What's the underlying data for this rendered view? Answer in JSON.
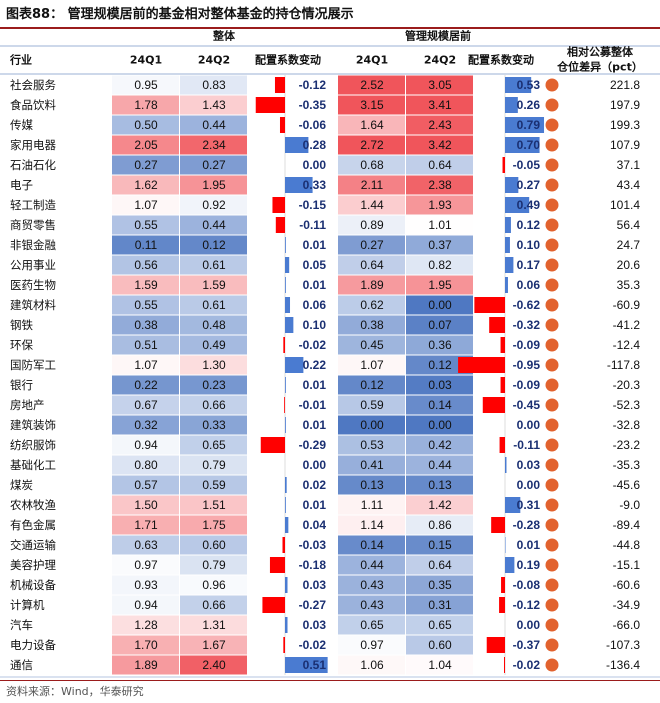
{
  "title": "图表88：  管理规模居前的基金相对整体基金的持仓情况展示",
  "source": "资料来源：Wind，华泰研究",
  "colors": {
    "red": "#f0555b",
    "blue": "#4f78c2",
    "bar_red": "#ff0000",
    "bar_blue": "#4a7bd1",
    "dot": "#e2622e",
    "change_text": "#1a2f72"
  },
  "chart_data": {
    "type": "table",
    "group_headers": {
      "overall": "整体",
      "top": "管理规模居前"
    },
    "columns": [
      "行业",
      "24Q1",
      "24Q2",
      "配置系数变动",
      "24Q1",
      "24Q2",
      "配置系数变动",
      "相对公募整体仓位差异（pct）"
    ],
    "rows": [
      {
        "industry": "社会服务",
        "all_q1": 0.95,
        "all_q2": 0.83,
        "all_chg": -0.12,
        "top_q1": 2.52,
        "top_q2": 3.05,
        "top_chg": 0.53,
        "diff": 221.8
      },
      {
        "industry": "食品饮料",
        "all_q1": 1.78,
        "all_q2": 1.43,
        "all_chg": -0.35,
        "top_q1": 3.15,
        "top_q2": 3.41,
        "top_chg": 0.26,
        "diff": 197.9
      },
      {
        "industry": "传媒",
        "all_q1": 0.5,
        "all_q2": 0.44,
        "all_chg": -0.06,
        "top_q1": 1.64,
        "top_q2": 2.43,
        "top_chg": 0.79,
        "diff": 199.3
      },
      {
        "industry": "家用电器",
        "all_q1": 2.05,
        "all_q2": 2.34,
        "all_chg": 0.28,
        "top_q1": 2.72,
        "top_q2": 3.42,
        "top_chg": 0.7,
        "diff": 107.9
      },
      {
        "industry": "石油石化",
        "all_q1": 0.27,
        "all_q2": 0.27,
        "all_chg": 0.0,
        "top_q1": 0.68,
        "top_q2": 0.64,
        "top_chg": -0.05,
        "diff": 37.1
      },
      {
        "industry": "电子",
        "all_q1": 1.62,
        "all_q2": 1.95,
        "all_chg": 0.33,
        "top_q1": 2.11,
        "top_q2": 2.38,
        "top_chg": 0.27,
        "diff": 43.4
      },
      {
        "industry": "轻工制造",
        "all_q1": 1.07,
        "all_q2": 0.92,
        "all_chg": -0.15,
        "top_q1": 1.44,
        "top_q2": 1.93,
        "top_chg": 0.49,
        "diff": 101.4
      },
      {
        "industry": "商贸零售",
        "all_q1": 0.55,
        "all_q2": 0.44,
        "all_chg": -0.11,
        "top_q1": 0.89,
        "top_q2": 1.01,
        "top_chg": 0.12,
        "diff": 56.4
      },
      {
        "industry": "非银金融",
        "all_q1": 0.11,
        "all_q2": 0.12,
        "all_chg": 0.01,
        "top_q1": 0.27,
        "top_q2": 0.37,
        "top_chg": 0.1,
        "diff": 24.7
      },
      {
        "industry": "公用事业",
        "all_q1": 0.56,
        "all_q2": 0.61,
        "all_chg": 0.05,
        "top_q1": 0.64,
        "top_q2": 0.82,
        "top_chg": 0.17,
        "diff": 20.6
      },
      {
        "industry": "医药生物",
        "all_q1": 1.59,
        "all_q2": 1.59,
        "all_chg": 0.01,
        "top_q1": 1.89,
        "top_q2": 1.95,
        "top_chg": 0.06,
        "diff": 35.3
      },
      {
        "industry": "建筑材料",
        "all_q1": 0.55,
        "all_q2": 0.61,
        "all_chg": 0.06,
        "top_q1": 0.62,
        "top_q2": 0.0,
        "top_chg": -0.62,
        "diff": -60.9
      },
      {
        "industry": "钢铁",
        "all_q1": 0.38,
        "all_q2": 0.48,
        "all_chg": 0.1,
        "top_q1": 0.38,
        "top_q2": 0.07,
        "top_chg": -0.32,
        "diff": -41.2
      },
      {
        "industry": "环保",
        "all_q1": 0.51,
        "all_q2": 0.49,
        "all_chg": -0.02,
        "top_q1": 0.45,
        "top_q2": 0.36,
        "top_chg": -0.09,
        "diff": -12.4
      },
      {
        "industry": "国防军工",
        "all_q1": 1.07,
        "all_q2": 1.3,
        "all_chg": 0.22,
        "top_q1": 1.07,
        "top_q2": 0.12,
        "top_chg": -0.95,
        "diff": -117.8
      },
      {
        "industry": "银行",
        "all_q1": 0.22,
        "all_q2": 0.23,
        "all_chg": 0.01,
        "top_q1": 0.12,
        "top_q2": 0.03,
        "top_chg": -0.09,
        "diff": -20.3
      },
      {
        "industry": "房地产",
        "all_q1": 0.67,
        "all_q2": 0.66,
        "all_chg": -0.01,
        "top_q1": 0.59,
        "top_q2": 0.14,
        "top_chg": -0.45,
        "diff": -52.3
      },
      {
        "industry": "建筑装饰",
        "all_q1": 0.32,
        "all_q2": 0.33,
        "all_chg": 0.01,
        "top_q1": 0.0,
        "top_q2": 0.0,
        "top_chg": 0.0,
        "diff": -32.8
      },
      {
        "industry": "纺织服饰",
        "all_q1": 0.94,
        "all_q2": 0.65,
        "all_chg": -0.29,
        "top_q1": 0.53,
        "top_q2": 0.42,
        "top_chg": -0.11,
        "diff": -23.2
      },
      {
        "industry": "基础化工",
        "all_q1": 0.8,
        "all_q2": 0.79,
        "all_chg": 0.0,
        "top_q1": 0.41,
        "top_q2": 0.44,
        "top_chg": 0.03,
        "diff": -35.3
      },
      {
        "industry": "煤炭",
        "all_q1": 0.57,
        "all_q2": 0.59,
        "all_chg": 0.02,
        "top_q1": 0.13,
        "top_q2": 0.13,
        "top_chg": 0.0,
        "diff": -45.6
      },
      {
        "industry": "农林牧渔",
        "all_q1": 1.5,
        "all_q2": 1.51,
        "all_chg": 0.01,
        "top_q1": 1.11,
        "top_q2": 1.42,
        "top_chg": 0.31,
        "diff": -9.0
      },
      {
        "industry": "有色金属",
        "all_q1": 1.71,
        "all_q2": 1.75,
        "all_chg": 0.04,
        "top_q1": 1.14,
        "top_q2": 0.86,
        "top_chg": -0.28,
        "diff": -89.4
      },
      {
        "industry": "交通运输",
        "all_q1": 0.63,
        "all_q2": 0.6,
        "all_chg": -0.03,
        "top_q1": 0.14,
        "top_q2": 0.15,
        "top_chg": 0.01,
        "diff": -44.8
      },
      {
        "industry": "美容护理",
        "all_q1": 0.97,
        "all_q2": 0.79,
        "all_chg": -0.18,
        "top_q1": 0.44,
        "top_q2": 0.64,
        "top_chg": 0.19,
        "diff": -15.1
      },
      {
        "industry": "机械设备",
        "all_q1": 0.93,
        "all_q2": 0.96,
        "all_chg": 0.03,
        "top_q1": 0.43,
        "top_q2": 0.35,
        "top_chg": -0.08,
        "diff": -60.6
      },
      {
        "industry": "计算机",
        "all_q1": 0.94,
        "all_q2": 0.66,
        "all_chg": -0.27,
        "top_q1": 0.43,
        "top_q2": 0.31,
        "top_chg": -0.12,
        "diff": -34.9
      },
      {
        "industry": "汽车",
        "all_q1": 1.28,
        "all_q2": 1.31,
        "all_chg": 0.03,
        "top_q1": 0.65,
        "top_q2": 0.65,
        "top_chg": 0.0,
        "diff": -66.0
      },
      {
        "industry": "电力设备",
        "all_q1": 1.7,
        "all_q2": 1.67,
        "all_chg": -0.02,
        "top_q1": 0.97,
        "top_q2": 0.6,
        "top_chg": -0.37,
        "diff": -107.3
      },
      {
        "industry": "通信",
        "all_q1": 1.89,
        "all_q2": 2.4,
        "all_chg": 0.51,
        "top_q1": 1.06,
        "top_q2": 1.04,
        "top_chg": -0.02,
        "diff": -136.4
      }
    ]
  }
}
